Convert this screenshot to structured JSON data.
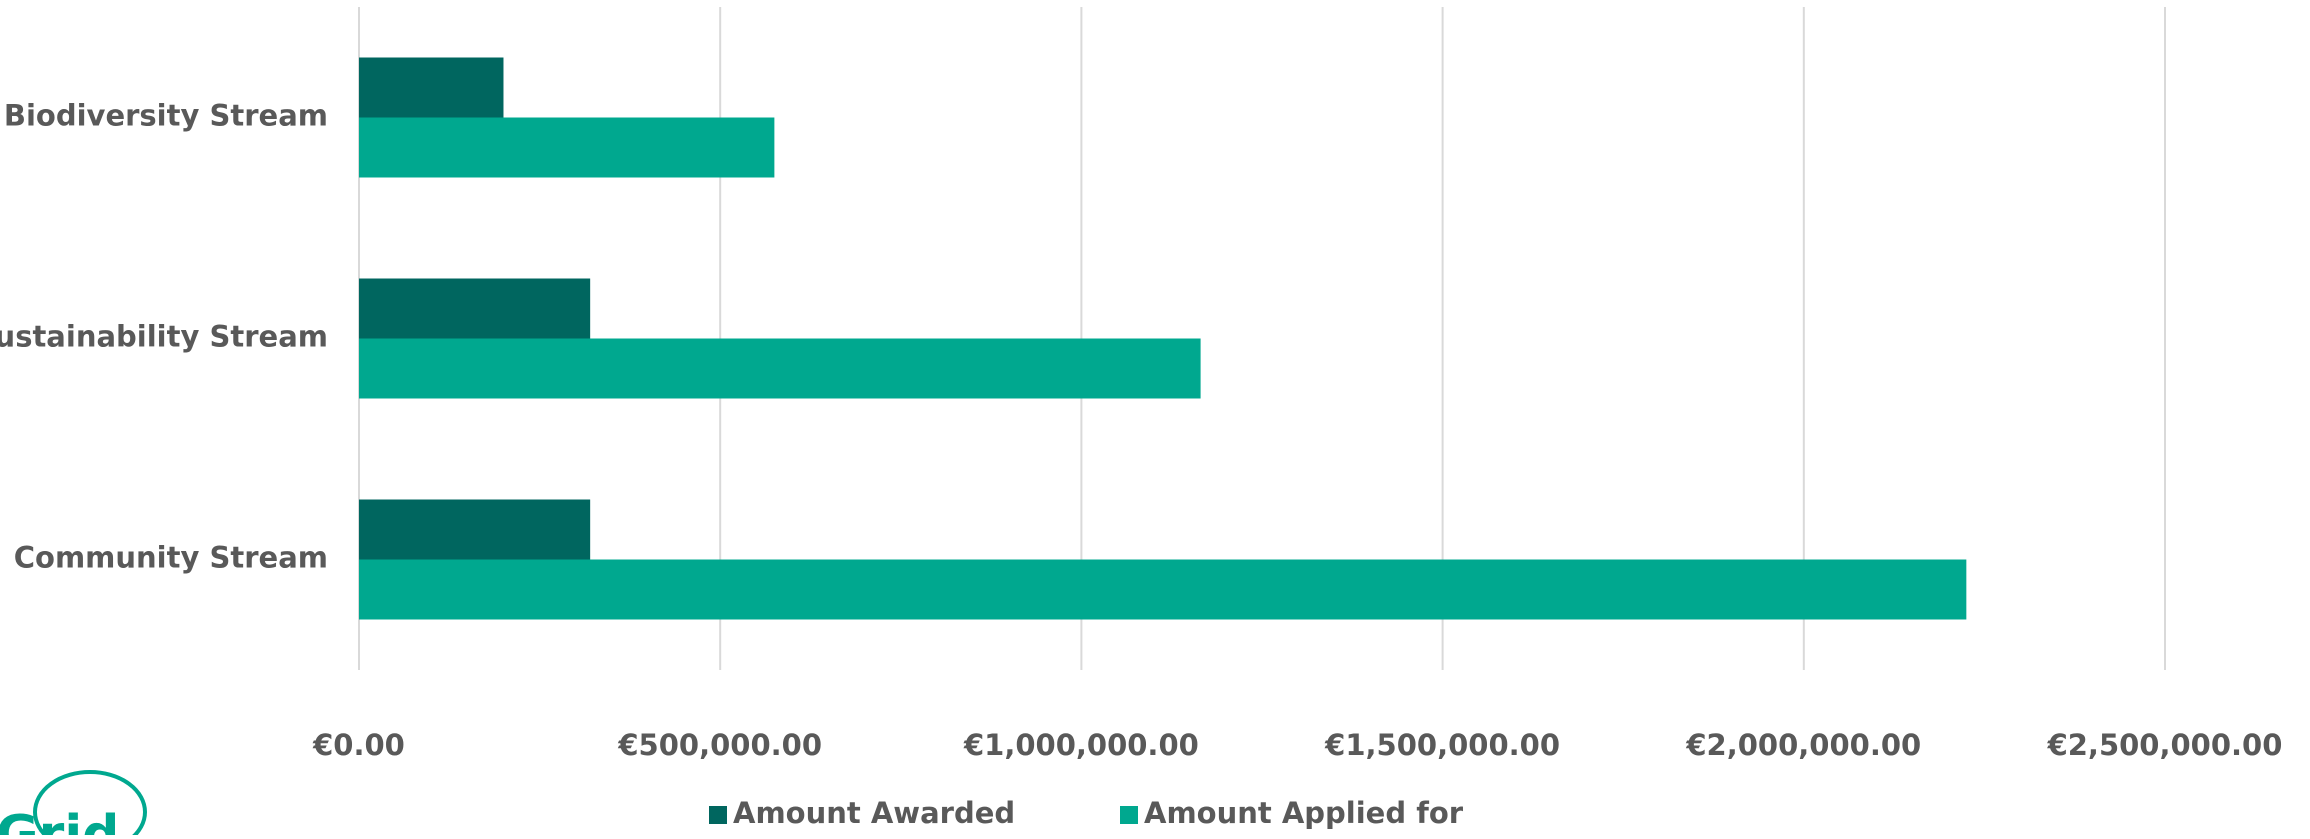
{
  "chart_data": {
    "type": "hbar",
    "categories": [
      "Biodiversity Stream",
      "Sustainability Stream",
      "Community Stream"
    ],
    "series": [
      {
        "name": "Amount Awarded",
        "color": "#00665f",
        "values": [
          200000,
          320000,
          320000
        ]
      },
      {
        "name": "Amount Applied for",
        "color": "#00a88f",
        "values": [
          575000,
          1165000,
          2225000
        ]
      }
    ],
    "xlim": [
      0,
      2500000
    ],
    "xticks": [
      {
        "value": 0,
        "label": "€0.00"
      },
      {
        "value": 500000,
        "label": "€500,000.00"
      },
      {
        "value": 1000000,
        "label": "€1,000,000.00"
      },
      {
        "value": 1500000,
        "label": "€1,500,000.00"
      },
      {
        "value": 2000000,
        "label": "€2,000,000.00"
      },
      {
        "value": 2500000,
        "label": "€2,500,000.00"
      }
    ],
    "grid": true,
    "legend": "bottom"
  },
  "logo": "Grid"
}
